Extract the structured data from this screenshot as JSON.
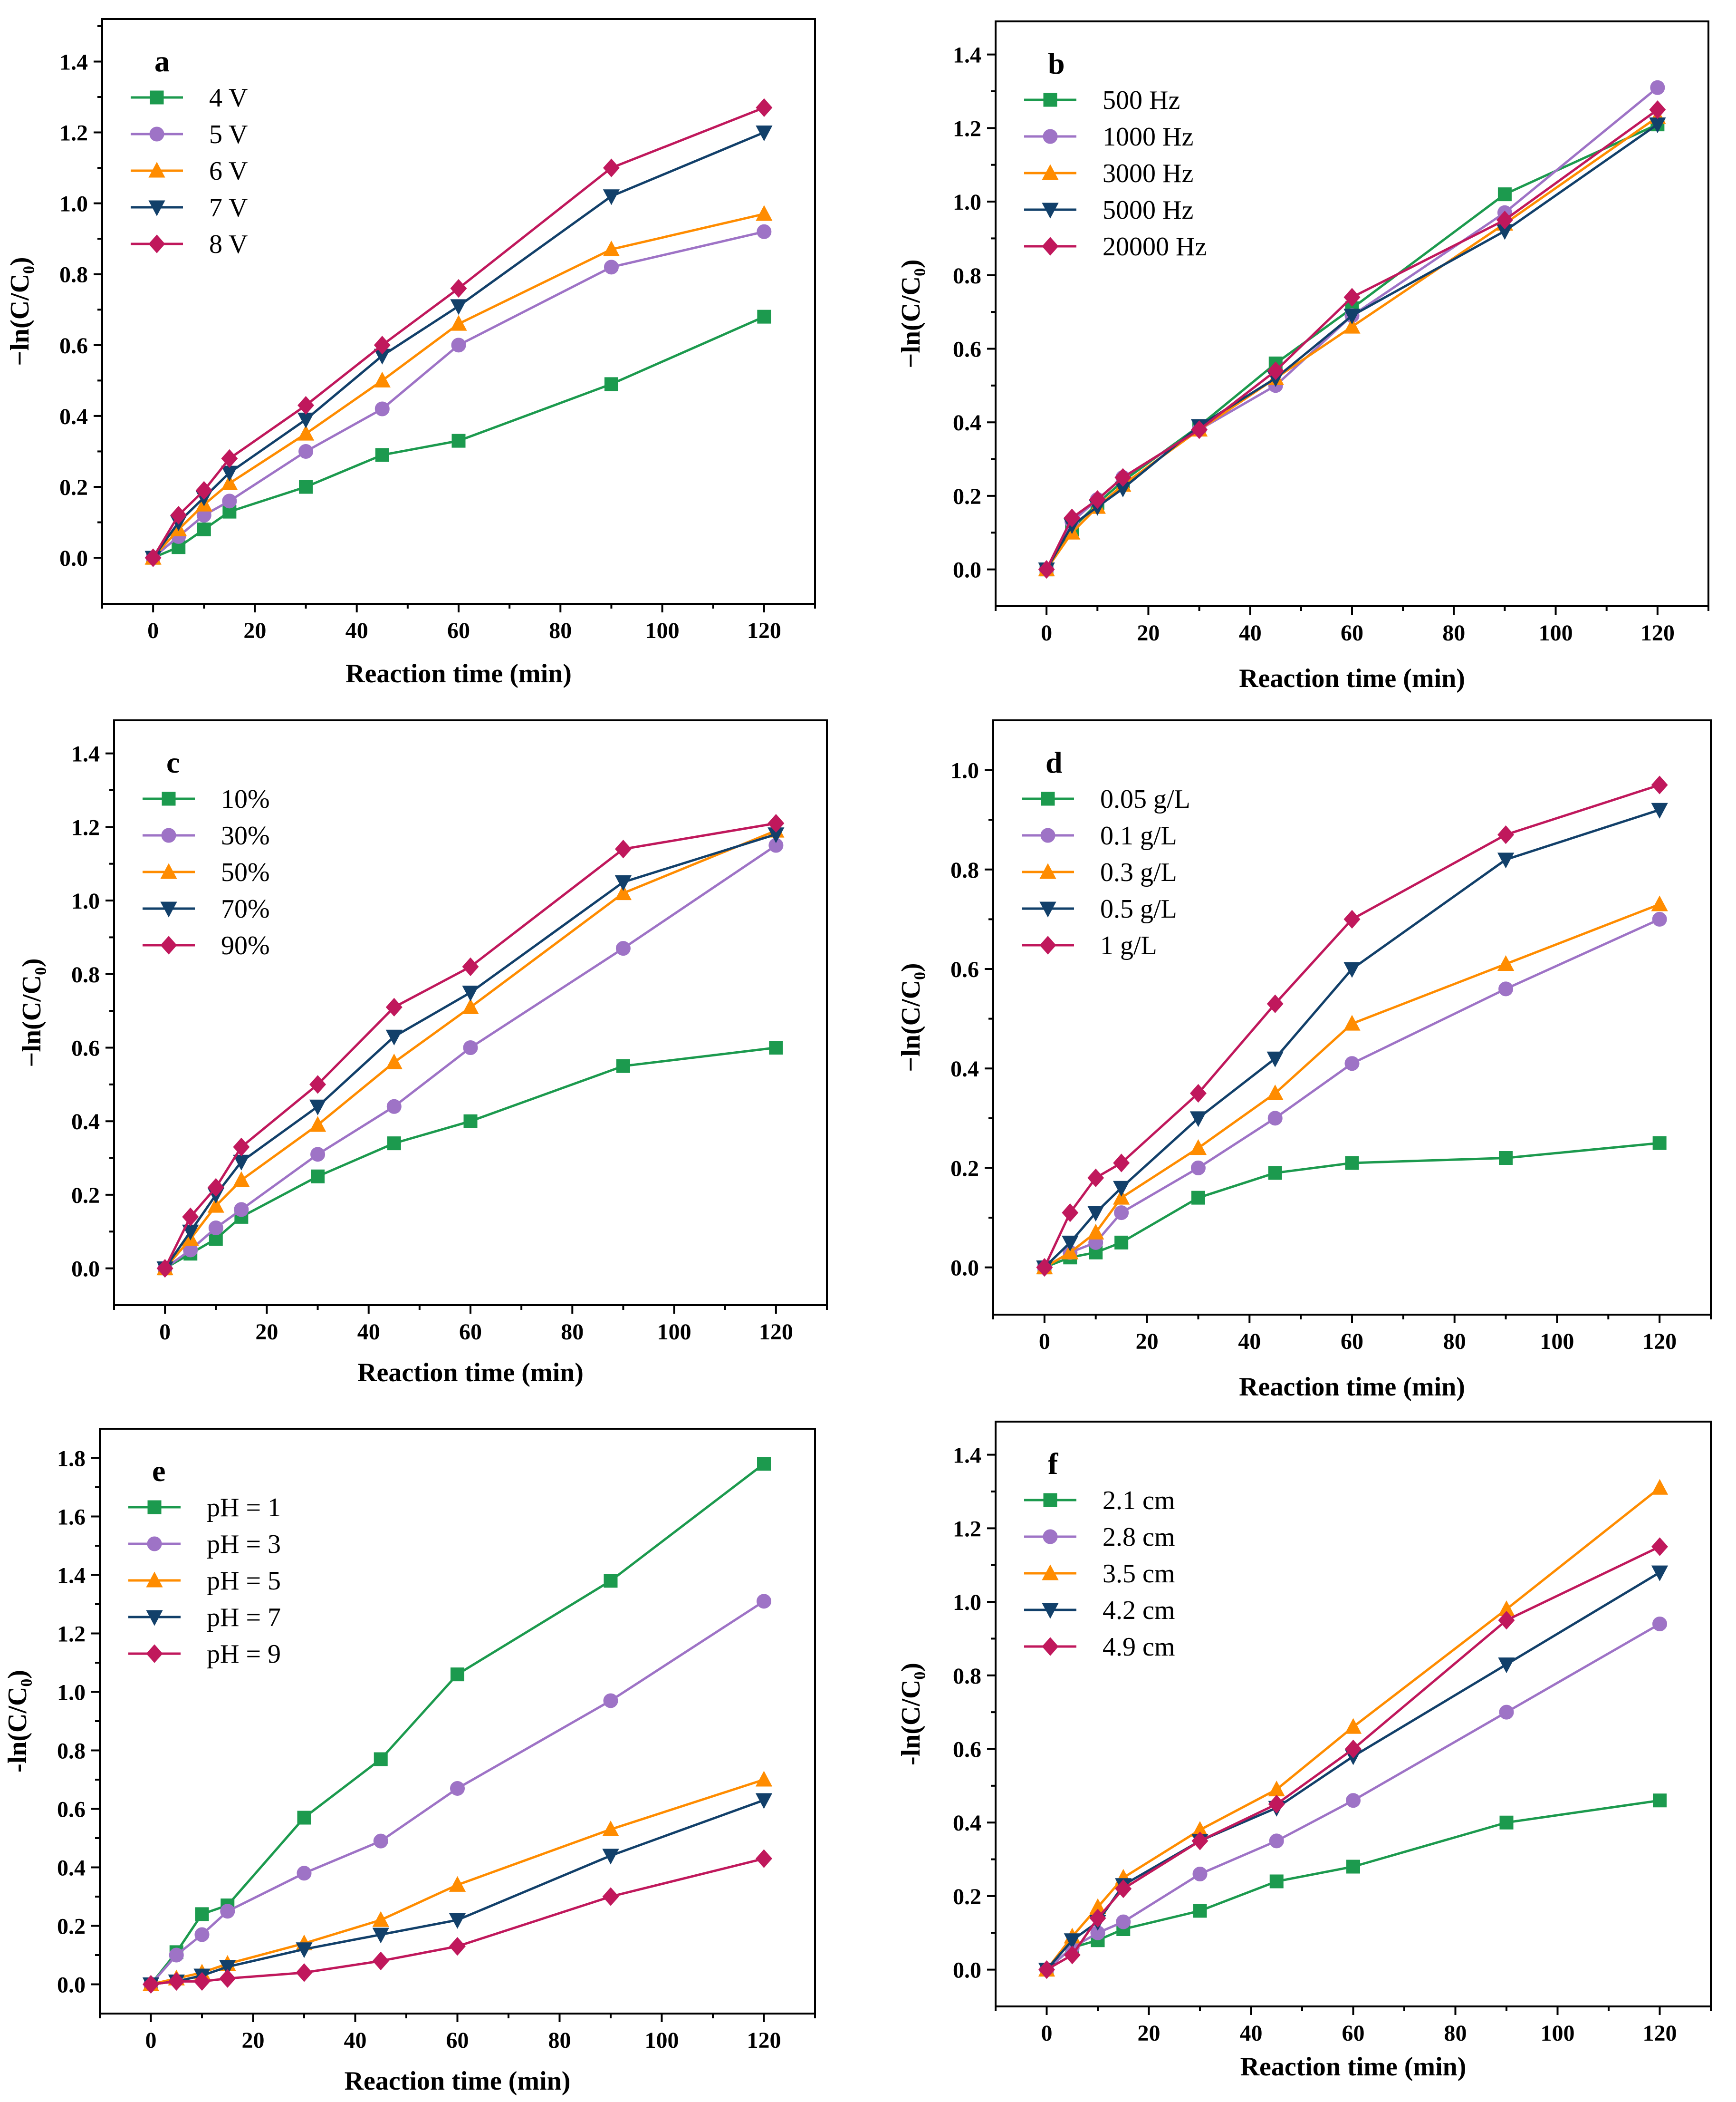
{
  "figure": {
    "colors": {
      "green": "#1c9a4e",
      "purple": "#9e73c6",
      "orange": "#ff8c00",
      "navy": "#12406a",
      "crimson": "#c0185c",
      "axis": "#000000",
      "background": "#ffffff"
    },
    "x_ticks": [
      0,
      20,
      40,
      60,
      80,
      100,
      120
    ]
  },
  "chart_data": [
    {
      "id": "a",
      "type": "line",
      "panel_label": "a",
      "xlabel": "Reaction time (min)",
      "ylabel": "−ln(C/C₀)",
      "xlim": [
        -10,
        130
      ],
      "ylim": [
        -0.13,
        1.52
      ],
      "y_ticks": [
        "0.0",
        "0.2",
        "0.4",
        "0.6",
        "0.8",
        "1.0",
        "1.2",
        "1.4"
      ],
      "legend_position": "top-left",
      "x": [
        0,
        5,
        10,
        15,
        30,
        45,
        60,
        90,
        120
      ],
      "series": [
        {
          "name": "4 V",
          "marker": "square",
          "color": "#1c9a4e",
          "values": [
            0,
            0.03,
            0.08,
            0.13,
            0.2,
            0.29,
            0.33,
            0.49,
            0.68
          ]
        },
        {
          "name": "5 V",
          "marker": "circle",
          "color": "#9e73c6",
          "values": [
            0,
            0.06,
            0.12,
            0.16,
            0.3,
            0.42,
            0.6,
            0.82,
            0.92
          ]
        },
        {
          "name": "6 V",
          "marker": "triangle-up",
          "color": "#ff8c00",
          "values": [
            0,
            0.08,
            0.15,
            0.21,
            0.35,
            0.5,
            0.66,
            0.87,
            0.97
          ]
        },
        {
          "name": "7 V",
          "marker": "triangle-down",
          "color": "#12406a",
          "values": [
            0,
            0.1,
            0.17,
            0.24,
            0.39,
            0.57,
            0.71,
            1.02,
            1.2
          ]
        },
        {
          "name": "8 V",
          "marker": "diamond",
          "color": "#c0185c",
          "values": [
            0,
            0.12,
            0.19,
            0.28,
            0.43,
            0.6,
            0.76,
            1.1,
            1.27
          ]
        }
      ]
    },
    {
      "id": "b",
      "type": "line",
      "panel_label": "b",
      "xlabel": "Reaction time (min)",
      "ylabel": "−ln(C/C₀)",
      "xlim": [
        -10,
        130
      ],
      "ylim": [
        -0.1,
        1.49
      ],
      "y_ticks": [
        "0.0",
        "0.2",
        "0.4",
        "0.6",
        "0.8",
        "1.0",
        "1.2",
        "1.4"
      ],
      "legend_position": "top-left",
      "x": [
        0,
        5,
        10,
        15,
        30,
        45,
        60,
        90,
        120
      ],
      "series": [
        {
          "name": "500 Hz",
          "marker": "square",
          "color": "#1c9a4e",
          "values": [
            0,
            0.11,
            0.18,
            0.24,
            0.39,
            0.56,
            0.71,
            1.02,
            1.21
          ]
        },
        {
          "name": "1000 Hz",
          "marker": "circle",
          "color": "#9e73c6",
          "values": [
            0,
            0.13,
            0.19,
            0.25,
            0.38,
            0.5,
            0.69,
            0.97,
            1.31
          ]
        },
        {
          "name": "3000 Hz",
          "marker": "triangle-up",
          "color": "#ff8c00",
          "values": [
            0,
            0.1,
            0.17,
            0.23,
            0.38,
            0.52,
            0.66,
            0.94,
            1.23
          ]
        },
        {
          "name": "5000 Hz",
          "marker": "triangle-down",
          "color": "#12406a",
          "values": [
            0,
            0.12,
            0.17,
            0.22,
            0.39,
            0.52,
            0.69,
            0.92,
            1.21
          ]
        },
        {
          "name": "20000 Hz",
          "marker": "diamond",
          "color": "#c0185c",
          "values": [
            0,
            0.14,
            0.19,
            0.25,
            0.38,
            0.54,
            0.74,
            0.95,
            1.25
          ]
        }
      ]
    },
    {
      "id": "c",
      "type": "line",
      "panel_label": "c",
      "xlabel": "Reaction time (min)",
      "ylabel": "−ln(C/C₀)",
      "xlim": [
        -10,
        130
      ],
      "ylim": [
        -0.1,
        1.49
      ],
      "y_ticks": [
        "0.0",
        "0.2",
        "0.4",
        "0.6",
        "0.8",
        "1.0",
        "1.2",
        "1.4"
      ],
      "legend_position": "top-left",
      "x": [
        0,
        5,
        10,
        15,
        30,
        45,
        60,
        90,
        120
      ],
      "series": [
        {
          "name": "10%",
          "marker": "square",
          "color": "#1c9a4e",
          "values": [
            0,
            0.04,
            0.08,
            0.14,
            0.25,
            0.34,
            0.4,
            0.55,
            0.6
          ]
        },
        {
          "name": "30%",
          "marker": "circle",
          "color": "#9e73c6",
          "values": [
            0,
            0.05,
            0.11,
            0.16,
            0.31,
            0.44,
            0.6,
            0.87,
            1.15
          ]
        },
        {
          "name": "50%",
          "marker": "triangle-up",
          "color": "#ff8c00",
          "values": [
            0,
            0.08,
            0.17,
            0.24,
            0.39,
            0.56,
            0.71,
            1.02,
            1.19
          ]
        },
        {
          "name": "70%",
          "marker": "triangle-down",
          "color": "#12406a",
          "values": [
            0,
            0.1,
            0.2,
            0.29,
            0.44,
            0.63,
            0.75,
            1.05,
            1.18
          ]
        },
        {
          "name": "90%",
          "marker": "diamond",
          "color": "#c0185c",
          "values": [
            0,
            0.14,
            0.22,
            0.33,
            0.5,
            0.71,
            0.82,
            1.14,
            1.21
          ]
        }
      ]
    },
    {
      "id": "d",
      "type": "line",
      "panel_label": "d",
      "xlabel": "Reaction time (min)",
      "ylabel": "−ln(C/C₀)",
      "xlim": [
        -10,
        130
      ],
      "ylim": [
        -0.095,
        1.1
      ],
      "y_ticks": [
        "0.0",
        "0.2",
        "0.4",
        "0.6",
        "0.8",
        "1.0"
      ],
      "legend_position": "top-left",
      "x": [
        0,
        5,
        10,
        15,
        30,
        45,
        60,
        90,
        120
      ],
      "series": [
        {
          "name": "0.05 g/L",
          "marker": "square",
          "color": "#1c9a4e",
          "values": [
            0,
            0.02,
            0.03,
            0.05,
            0.14,
            0.19,
            0.21,
            0.22,
            0.25
          ]
        },
        {
          "name": "0.1 g/L",
          "marker": "circle",
          "color": "#9e73c6",
          "values": [
            0,
            0.03,
            0.05,
            0.11,
            0.2,
            0.3,
            0.41,
            0.56,
            0.7
          ]
        },
        {
          "name": "0.3 g/L",
          "marker": "triangle-up",
          "color": "#ff8c00",
          "values": [
            0,
            0.03,
            0.07,
            0.14,
            0.24,
            0.35,
            0.49,
            0.61,
            0.73
          ]
        },
        {
          "name": "0.5 g/L",
          "marker": "triangle-down",
          "color": "#12406a",
          "values": [
            0,
            0.05,
            0.11,
            0.16,
            0.3,
            0.42,
            0.6,
            0.82,
            0.92
          ]
        },
        {
          "name": "1 g/L",
          "marker": "diamond",
          "color": "#c0185c",
          "values": [
            0,
            0.11,
            0.18,
            0.21,
            0.35,
            0.53,
            0.7,
            0.87,
            0.97
          ]
        }
      ]
    },
    {
      "id": "e",
      "type": "line",
      "panel_label": "e",
      "xlabel": "Reaction time (min)",
      "ylabel": "-ln(C/C₀)",
      "xlim": [
        -10,
        130
      ],
      "ylim": [
        -0.1,
        1.9
      ],
      "y_ticks": [
        "0.0",
        "0.2",
        "0.4",
        "0.6",
        "0.8",
        "1.0",
        "1.2",
        "1.4",
        "1.6",
        "1.8"
      ],
      "legend_position": "top-left",
      "x": [
        0,
        5,
        10,
        15,
        30,
        45,
        60,
        90,
        120
      ],
      "series": [
        {
          "name": "pH = 1",
          "marker": "square",
          "color": "#1c9a4e",
          "values": [
            0,
            0.11,
            0.24,
            0.27,
            0.57,
            0.77,
            1.06,
            1.38,
            1.78
          ]
        },
        {
          "name": "pH = 3",
          "marker": "circle",
          "color": "#9e73c6",
          "values": [
            0,
            0.1,
            0.17,
            0.25,
            0.38,
            0.49,
            0.67,
            0.97,
            1.31
          ]
        },
        {
          "name": "pH = 5",
          "marker": "triangle-up",
          "color": "#ff8c00",
          "values": [
            0,
            0.02,
            0.04,
            0.07,
            0.14,
            0.22,
            0.34,
            0.53,
            0.7
          ]
        },
        {
          "name": "pH = 7",
          "marker": "triangle-down",
          "color": "#12406a",
          "values": [
            0,
            0.01,
            0.03,
            0.06,
            0.12,
            0.17,
            0.22,
            0.44,
            0.63
          ]
        },
        {
          "name": "pH = 9",
          "marker": "diamond",
          "color": "#c0185c",
          "values": [
            0,
            0.01,
            0.01,
            0.02,
            0.04,
            0.08,
            0.13,
            0.3,
            0.43
          ]
        }
      ]
    },
    {
      "id": "f",
      "type": "line",
      "panel_label": "f",
      "xlabel": "Reaction time (min)",
      "ylabel": "-ln(C/C₀)",
      "xlim": [
        -10,
        130
      ],
      "ylim": [
        -0.1,
        1.49
      ],
      "y_ticks": [
        "0.0",
        "0.2",
        "0.4",
        "0.6",
        "0.8",
        "1.0",
        "1.2",
        "1.4"
      ],
      "legend_position": "top-left",
      "x": [
        0,
        5,
        10,
        15,
        30,
        45,
        60,
        90,
        120
      ],
      "series": [
        {
          "name": "2.1 cm",
          "marker": "square",
          "color": "#1c9a4e",
          "values": [
            0,
            0.06,
            0.08,
            0.11,
            0.16,
            0.24,
            0.28,
            0.4,
            0.46
          ]
        },
        {
          "name": "2.8 cm",
          "marker": "circle",
          "color": "#9e73c6",
          "values": [
            0,
            0.06,
            0.1,
            0.13,
            0.26,
            0.35,
            0.46,
            0.7,
            0.94
          ]
        },
        {
          "name": "3.5 cm",
          "marker": "triangle-up",
          "color": "#ff8c00",
          "values": [
            0,
            0.09,
            0.17,
            0.25,
            0.38,
            0.49,
            0.66,
            0.98,
            1.31
          ]
        },
        {
          "name": "4.2 cm",
          "marker": "triangle-down",
          "color": "#12406a",
          "values": [
            0,
            0.08,
            0.13,
            0.23,
            0.35,
            0.44,
            0.58,
            0.83,
            1.08
          ]
        },
        {
          "name": "4.9 cm",
          "marker": "diamond",
          "color": "#c0185c",
          "values": [
            0,
            0.04,
            0.14,
            0.22,
            0.35,
            0.45,
            0.6,
            0.95,
            1.15
          ]
        }
      ]
    }
  ]
}
